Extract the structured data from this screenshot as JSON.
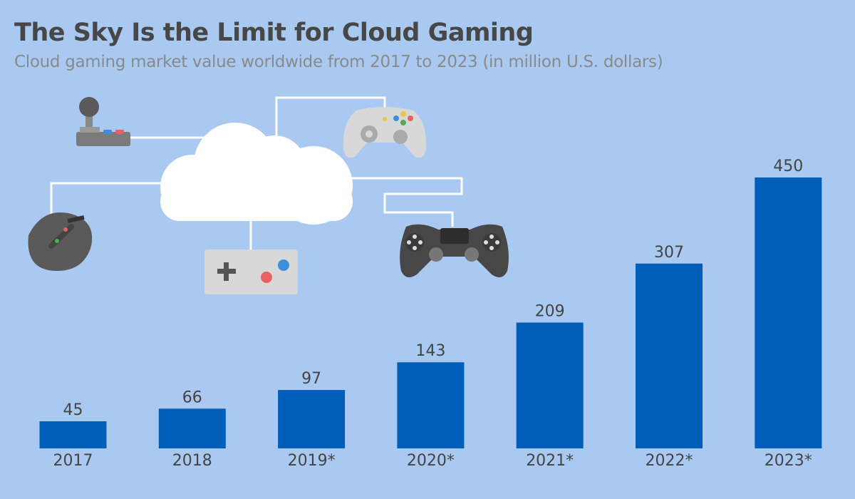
{
  "colors": {
    "background": "#a9c9f1",
    "bar": "#005eb8",
    "text": "#444444",
    "subtitle": "#8a8a8a"
  },
  "chart_data": {
    "type": "bar",
    "title": "The Sky Is the Limit for Cloud Gaming",
    "subtitle": "Cloud gaming market value worldwide from 2017 to 2023 (in million U.S. dollars)",
    "categories": [
      "2017",
      "2018",
      "2019*",
      "2020*",
      "2021*",
      "2022*",
      "2023*"
    ],
    "values": [
      45,
      66,
      97,
      143,
      209,
      307,
      450
    ],
    "xlabel": "",
    "ylabel": "",
    "ylim": [
      0,
      450
    ],
    "grid": false,
    "data_labels": true,
    "illustration_icons": [
      "cloud-icon",
      "joystick-icon",
      "xbox-controller-icon",
      "mouse-icon",
      "gamepad-icon",
      "playstation-controller-icon"
    ]
  }
}
